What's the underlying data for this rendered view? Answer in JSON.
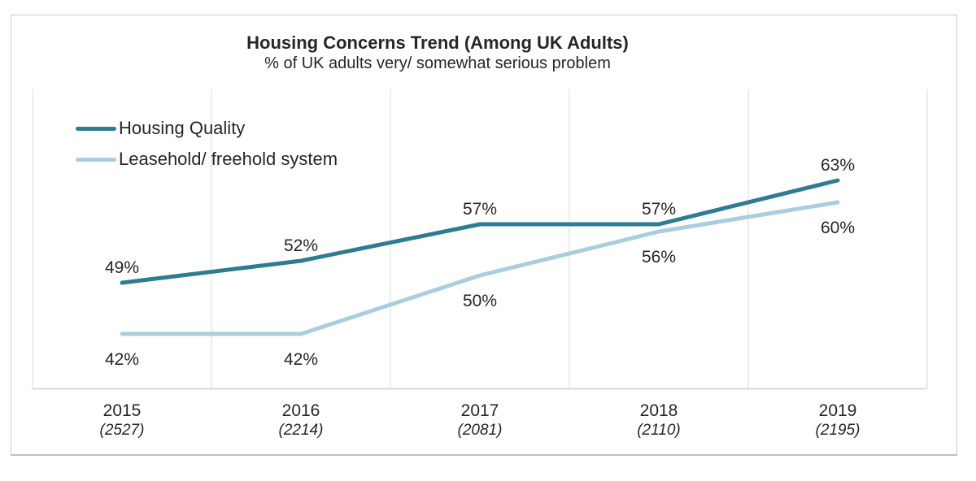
{
  "chart": {
    "title": "Housing Concerns Trend (Among UK Adults)",
    "subtitle": "% of UK adults very/ somewhat serious problem"
  },
  "chart_data": {
    "type": "line",
    "title": "Housing Concerns Trend (Among UK Adults)",
    "subtitle": "% of UK adults very/ somewhat serious problem",
    "categories": [
      "2015",
      "2016",
      "2017",
      "2018",
      "2019"
    ],
    "sample_sizes": [
      "(2527)",
      "(2214)",
      "(2081)",
      "(2110)",
      "(2195)"
    ],
    "series": [
      {
        "name": "Housing Quality",
        "color": "#2E7C92",
        "values": [
          49,
          52,
          57,
          57,
          63
        ],
        "labels": [
          "49%",
          "52%",
          "57%",
          "57%",
          "63%"
        ],
        "label_position": "above"
      },
      {
        "name": "Leasehold/ freehold system",
        "color": "#A9CEDE",
        "values": [
          42,
          42,
          50,
          56,
          60
        ],
        "labels": [
          "42%",
          "42%",
          "50%",
          "56%",
          "60%"
        ],
        "label_position": "below"
      }
    ],
    "value_suffix": "%",
    "ylim": [
      36,
      70
    ],
    "grid": "vertical gridlines at category boundaries",
    "legend_position": "top-left inside plot",
    "xlabel": "",
    "ylabel": ""
  },
  "colors": {
    "gridline": "#e7e7e7",
    "axis_line": "#cfcfcf",
    "card_border": "#c9c9c9",
    "text": "#262626",
    "background": "#ffffff"
  }
}
